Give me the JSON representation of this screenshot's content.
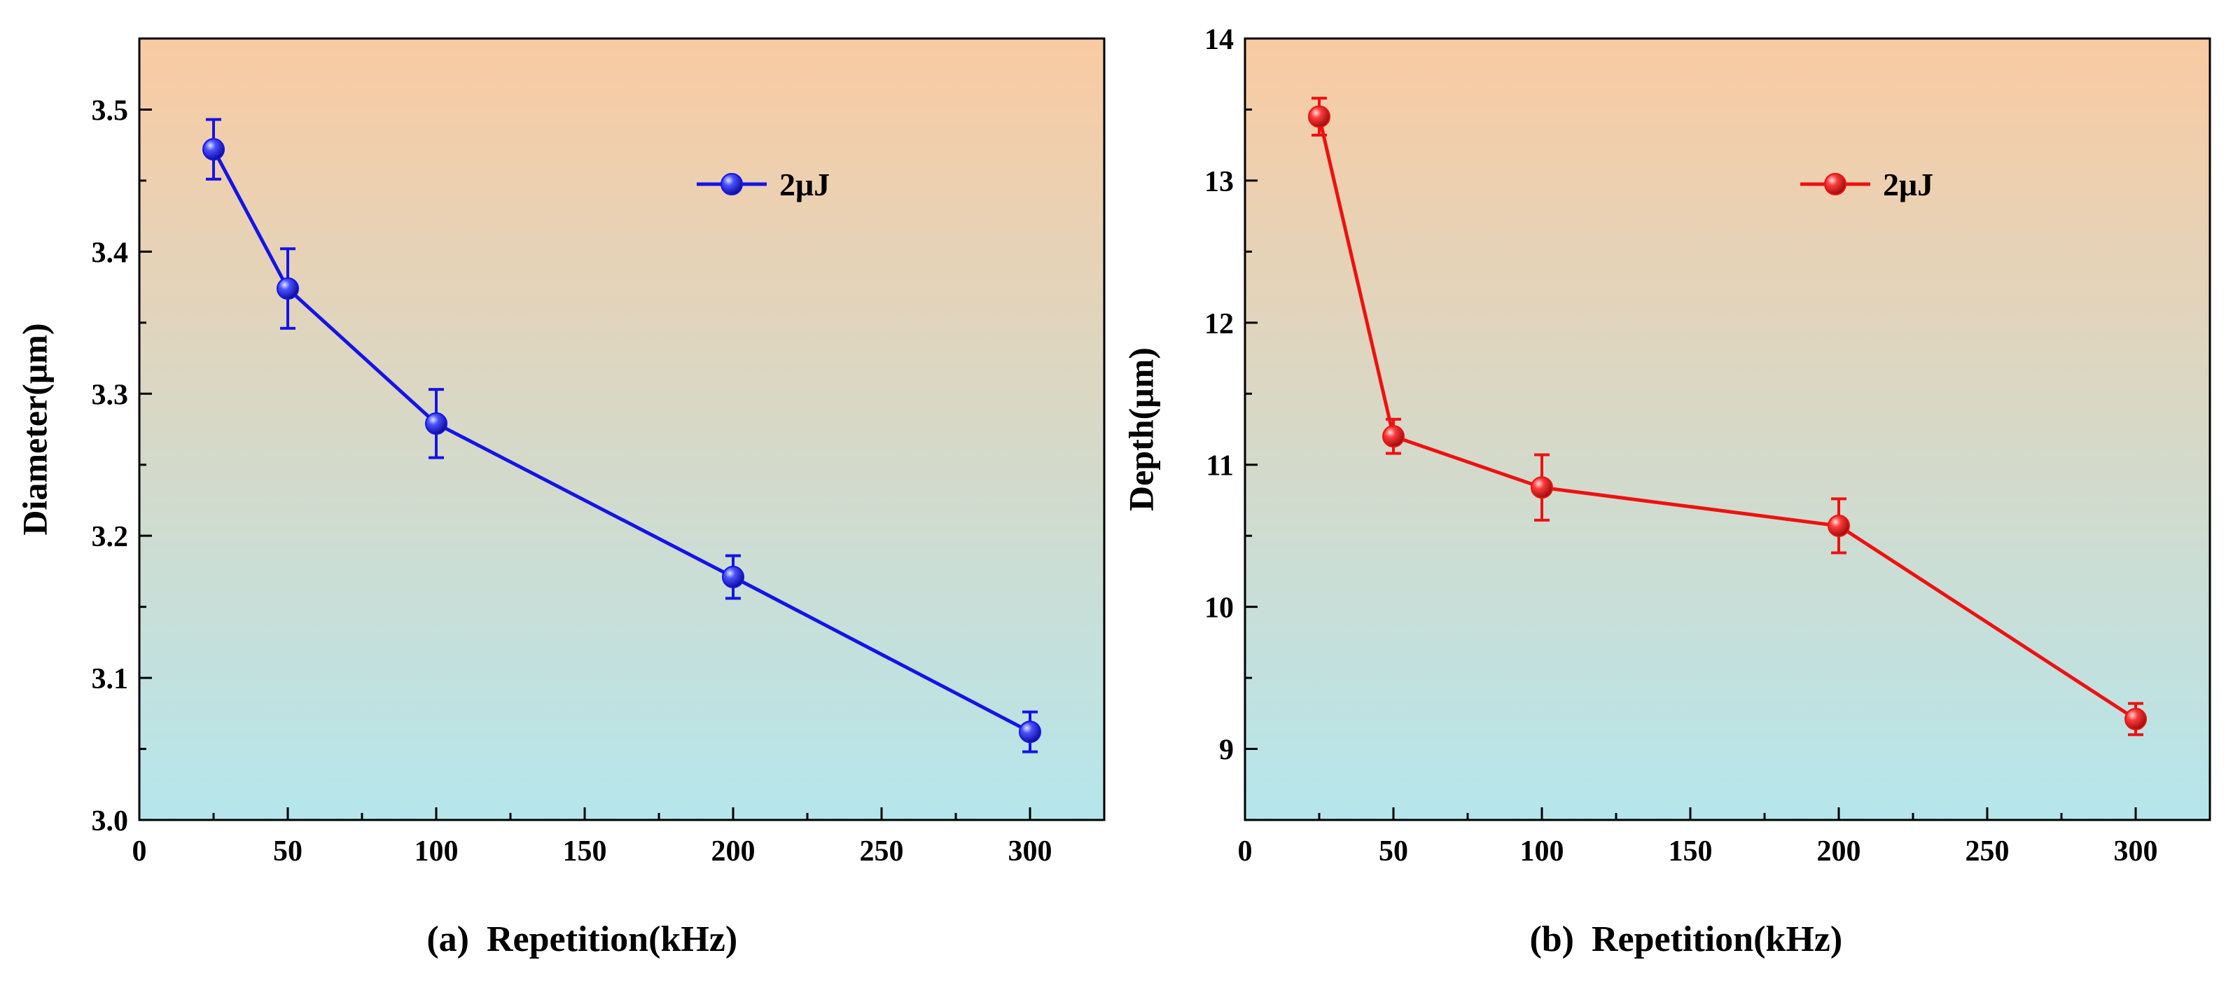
{
  "chart_data": [
    {
      "panel": "(a)",
      "type": "line",
      "xlabel": "Repetition(kHz)",
      "ylabel": "Diameter(μm)",
      "xlim": [
        0,
        325
      ],
      "ylim": [
        3.0,
        3.55
      ],
      "xticks": [
        0,
        50,
        100,
        150,
        200,
        250,
        300
      ],
      "yticks": [
        3.0,
        3.1,
        3.2,
        3.3,
        3.4,
        3.5
      ],
      "xtick_labels": [
        "0",
        "50",
        "100",
        "150",
        "200",
        "250",
        "300"
      ],
      "ytick_labels": [
        "3.0",
        "3.1",
        "3.2",
        "3.3",
        "3.4",
        "3.5"
      ],
      "grid": false,
      "legend_position": "top-right",
      "series": [
        {
          "name": "2μJ",
          "color": "#1414e6",
          "x": [
            25,
            50,
            100,
            200,
            300
          ],
          "values": [
            3.472,
            3.374,
            3.279,
            3.171,
            3.062
          ],
          "errors": [
            0.021,
            0.028,
            0.024,
            0.015,
            0.014
          ]
        }
      ],
      "background_gradient": [
        "#f9cba2",
        "#b5e6ec"
      ]
    },
    {
      "panel": "(b)",
      "type": "line",
      "xlabel": "Repetition(kHz)",
      "ylabel": "Depth(μm)",
      "xlim": [
        0,
        325
      ],
      "ylim": [
        8.5,
        14
      ],
      "xticks": [
        0,
        50,
        100,
        150,
        200,
        250,
        300
      ],
      "yticks": [
        9,
        10,
        11,
        12,
        13,
        14
      ],
      "xtick_labels": [
        "0",
        "50",
        "100",
        "150",
        "200",
        "250",
        "300"
      ],
      "ytick_labels": [
        "9",
        "10",
        "11",
        "12",
        "13",
        "14"
      ],
      "grid": false,
      "legend_position": "top-right",
      "series": [
        {
          "name": "2μJ",
          "color": "#ee1111",
          "x": [
            25,
            50,
            100,
            200,
            300
          ],
          "values": [
            13.45,
            11.2,
            10.84,
            10.57,
            9.21
          ],
          "errors": [
            0.13,
            0.12,
            0.23,
            0.19,
            0.11
          ]
        }
      ],
      "background_gradient": [
        "#f9cba2",
        "#b5e6ec"
      ]
    }
  ]
}
